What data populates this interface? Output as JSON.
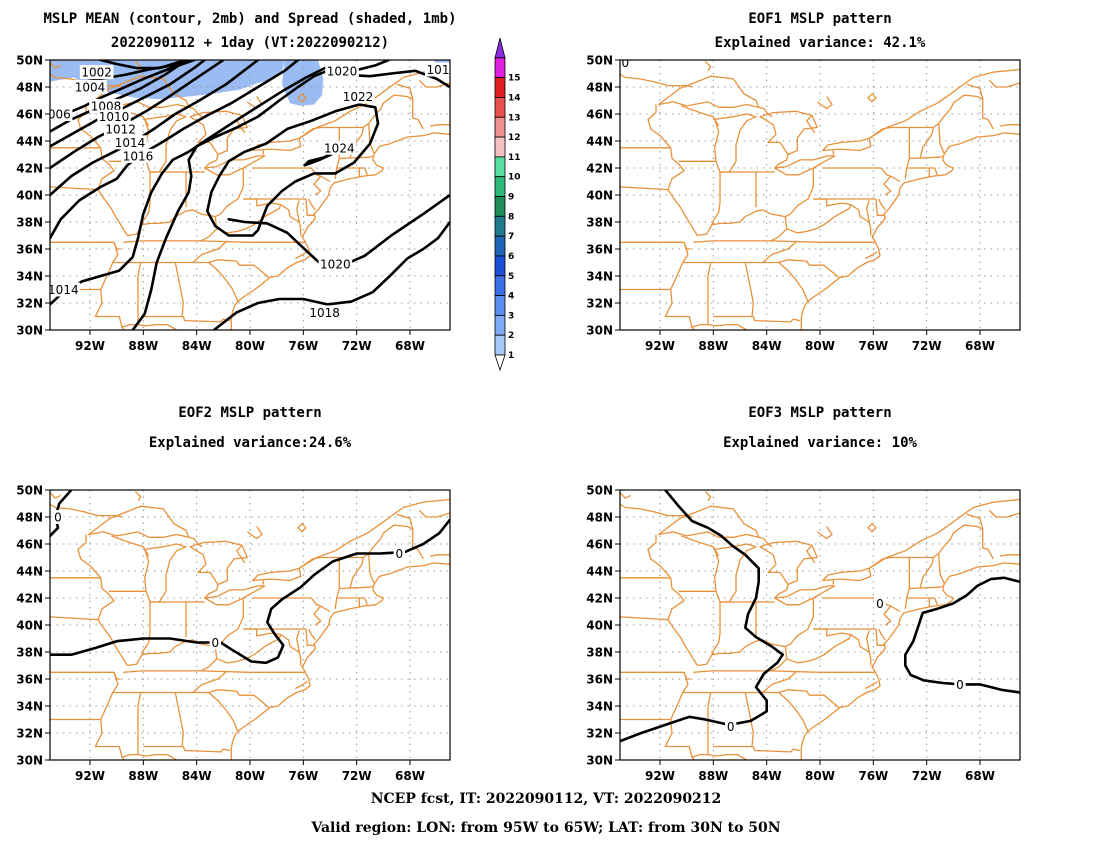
{
  "panels": [
    {
      "id": "mean",
      "title_lines": [
        "MSLP MEAN (contour, 2mb) and Spread (shaded, 1mb)",
        "2022090112 + 1day (VT:2022090212)"
      ],
      "contour_labels": [
        {
          "text": "1002",
          "lon": -91.5,
          "lat": 49.1
        },
        {
          "text": "1004",
          "lon": -92.0,
          "lat": 48.0
        },
        {
          "text": "006",
          "lon": -94.3,
          "lat": 46.0
        },
        {
          "text": "1008",
          "lon": -90.8,
          "lat": 46.6
        },
        {
          "text": "1010",
          "lon": -90.2,
          "lat": 45.8
        },
        {
          "text": "1012",
          "lon": -89.7,
          "lat": 44.9
        },
        {
          "text": "1014",
          "lon": -89.0,
          "lat": 43.9
        },
        {
          "text": "1016",
          "lon": -88.4,
          "lat": 42.9
        },
        {
          "text": "1020",
          "lon": -73.1,
          "lat": 49.2
        },
        {
          "text": "101",
          "lon": -65.9,
          "lat": 49.3
        },
        {
          "text": "1022",
          "lon": -71.9,
          "lat": 47.3
        },
        {
          "text": "1024",
          "lon": -73.3,
          "lat": 43.5
        },
        {
          "text": "1020",
          "lon": -73.6,
          "lat": 34.9
        },
        {
          "text": "1018",
          "lon": -74.4,
          "lat": 31.3
        },
        {
          "text": "1014",
          "lon": -94.0,
          "lat": 33.0
        }
      ],
      "spread_colorbar": {
        "labels": [
          "1",
          "2",
          "3",
          "4",
          "5",
          "6",
          "7",
          "8",
          "9",
          "10",
          "11",
          "12",
          "13",
          "14",
          "15"
        ],
        "colors": [
          "#A8C8F8",
          "#7FAAF5",
          "#5A8FF0",
          "#3A6FE8",
          "#1A4FD6",
          "#1E64B4",
          "#1F7A8C",
          "#1F8C5A",
          "#2EB87A",
          "#55E0A0",
          "#F5C0C0",
          "#F09090",
          "#E85050",
          "#E02020",
          "#E020E0",
          "#8A2BE2"
        ]
      }
    },
    {
      "id": "eof1",
      "title_lines": [
        "EOF1 MSLP pattern",
        "Explained variance: 42.1%"
      ],
      "contour_labels": [
        {
          "text": "0",
          "lon": -94.6,
          "lat": 49.8
        }
      ]
    },
    {
      "id": "eof2",
      "title_lines": [
        "EOF2 MSLP pattern",
        "Explained variance:24.6%"
      ],
      "contour_labels": [
        {
          "text": "0",
          "lon": -94.4,
          "lat": 48.0
        },
        {
          "text": "0",
          "lon": -82.6,
          "lat": 38.7
        },
        {
          "text": "0",
          "lon": -68.8,
          "lat": 45.3
        }
      ]
    },
    {
      "id": "eof3",
      "title_lines": [
        "EOF3 MSLP pattern",
        "Explained variance: 10%"
      ],
      "contour_labels": [
        {
          "text": "0",
          "lon": -86.7,
          "lat": 32.5
        },
        {
          "text": "0",
          "lon": -75.5,
          "lat": 41.6
        },
        {
          "text": "0",
          "lon": -69.5,
          "lat": 35.6
        }
      ]
    }
  ],
  "axes": {
    "lon_ticks": [
      -92,
      -88,
      -84,
      -80,
      -76,
      -72,
      -68
    ],
    "lon_tick_labels": [
      "92W",
      "88W",
      "84W",
      "80W",
      "76W",
      "72W",
      "68W"
    ],
    "lat_ticks": [
      30,
      32,
      34,
      36,
      38,
      40,
      42,
      44,
      46,
      48,
      50
    ],
    "lat_tick_labels": [
      "30N",
      "32N",
      "34N",
      "36N",
      "38N",
      "40N",
      "42N",
      "44N",
      "46N",
      "48N",
      "50N"
    ],
    "lon_range": [
      -95,
      -65
    ],
    "lat_range": [
      30,
      50
    ]
  },
  "colors": {
    "geography": "#E8913A",
    "contour": "#000000",
    "spread_shading": "#9ABCF2"
  },
  "footer": {
    "line1": "NCEP fcst, IT: 2022090112, VT: 2022090212",
    "line2": "Valid region: LON: from 95W to 65W; LAT: from 30N to 50N"
  }
}
